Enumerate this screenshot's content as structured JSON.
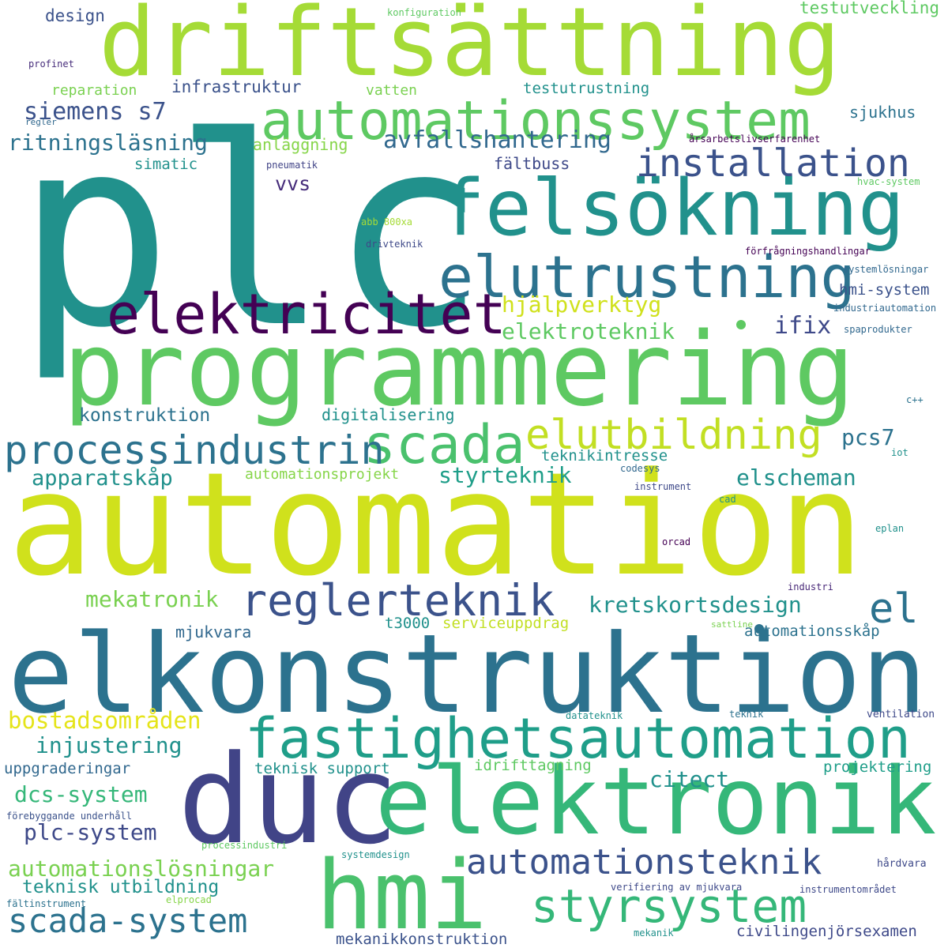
{
  "words": [
    {
      "text": "plc",
      "color": "#21918c"
    },
    {
      "text": "automation",
      "color": "#d0e11c"
    },
    {
      "text": "elkonstruktion",
      "color": "#2c728e"
    },
    {
      "text": "programmering",
      "color": "#5ec962"
    },
    {
      "text": "driftsättning",
      "color": "#a5db36"
    },
    {
      "text": "felsökning",
      "color": "#21918c"
    },
    {
      "text": "duc",
      "color": "#414487"
    },
    {
      "text": "elektronik",
      "color": "#35b779"
    },
    {
      "text": "hmi",
      "color": "#4ac16d"
    },
    {
      "text": "elektricitet",
      "color": "#440154"
    },
    {
      "text": "elutrustning",
      "color": "#2c728e"
    },
    {
      "text": "fastighetsautomation",
      "color": "#1f9e89"
    },
    {
      "text": "automationssystem",
      "color": "#5ec962"
    },
    {
      "text": "scada",
      "color": "#4ac16d"
    },
    {
      "text": "elutbildning",
      "color": "#c2df23"
    },
    {
      "text": "processindustrin",
      "color": "#2c728e"
    },
    {
      "text": "reglerteknik",
      "color": "#3b528b"
    },
    {
      "text": "styrsystem",
      "color": "#35b779"
    },
    {
      "text": "automationsteknik",
      "color": "#3b528b"
    },
    {
      "text": "scada-system",
      "color": "#2c728e"
    },
    {
      "text": "installation",
      "color": "#3b528b"
    },
    {
      "text": "el",
      "color": "#2c728e"
    },
    {
      "text": "avfallshantering",
      "color": "#31688e"
    },
    {
      "text": "siemens s7",
      "color": "#3b528b"
    },
    {
      "text": "ritningsläsning",
      "color": "#2c728e"
    },
    {
      "text": "hjälpverktyg",
      "color": "#d0e11c"
    },
    {
      "text": "elektroteknik",
      "color": "#5ec962"
    },
    {
      "text": "ifix",
      "color": "#3e4989"
    },
    {
      "text": "pcs7",
      "color": "#2c728e"
    },
    {
      "text": "apparatskåp",
      "color": "#21918c"
    },
    {
      "text": "styrteknik",
      "color": "#1f9e89"
    },
    {
      "text": "elscheman",
      "color": "#21918c"
    },
    {
      "text": "kretskortsdesign",
      "color": "#21918c"
    },
    {
      "text": "mekatronik",
      "color": "#7ad151"
    },
    {
      "text": "bostadsområden",
      "color": "#e5e419"
    },
    {
      "text": "injustering",
      "color": "#21918c"
    },
    {
      "text": "dcs-system",
      "color": "#35b779"
    },
    {
      "text": "plc-system",
      "color": "#3e4989"
    },
    {
      "text": "automationslösningar",
      "color": "#7ad151"
    },
    {
      "text": "teknisk utbildning",
      "color": "#21918c"
    },
    {
      "text": "citect",
      "color": "#21918c"
    },
    {
      "text": "vvs",
      "color": "#472d7b"
    },
    {
      "text": "konstruktion",
      "color": "#2c728e"
    },
    {
      "text": "digitalisering",
      "color": "#21918c"
    },
    {
      "text": "mjukvara",
      "color": "#31688e"
    },
    {
      "text": "hmi-system",
      "color": "#3b528b"
    },
    {
      "text": "infrastruktur",
      "color": "#3b528b"
    },
    {
      "text": "design",
      "color": "#3b528b"
    },
    {
      "text": "testutveckling",
      "color": "#5ec962"
    },
    {
      "text": "testutrustning",
      "color": "#21918c"
    },
    {
      "text": "reparation",
      "color": "#7ad151"
    },
    {
      "text": "vatten",
      "color": "#7ad151"
    },
    {
      "text": "sjukhus",
      "color": "#2c728e"
    },
    {
      "text": "anläggning",
      "color": "#86d549"
    },
    {
      "text": "simatic",
      "color": "#21918c"
    },
    {
      "text": "fältbuss",
      "color": "#3e4989"
    },
    {
      "text": "teknikintresse",
      "color": "#21918c"
    },
    {
      "text": "automationsprojekt",
      "color": "#86d549"
    },
    {
      "text": "serviceuppdrag",
      "color": "#c2df23"
    },
    {
      "text": "t3000",
      "color": "#21918c"
    },
    {
      "text": "automationsskåp",
      "color": "#2c728e"
    },
    {
      "text": "uppgraderingar",
      "color": "#31688e"
    },
    {
      "text": "teknisk support",
      "color": "#21918c"
    },
    {
      "text": "idrifttagning",
      "color": "#5ec962"
    },
    {
      "text": "projektering",
      "color": "#1f9e89"
    },
    {
      "text": "civilingenjörsexamen",
      "color": "#3e4989"
    },
    {
      "text": "mekanikkonstruktion",
      "color": "#3b528b"
    },
    {
      "text": "konfiguration",
      "color": "#5ec962"
    },
    {
      "text": "profinet",
      "color": "#472d7b"
    },
    {
      "text": "regler",
      "color": "#31688e"
    },
    {
      "text": "pneumatik",
      "color": "#414487"
    },
    {
      "text": "årsarbetslivserfarenhet",
      "color": "#440154"
    },
    {
      "text": "hvac-system",
      "color": "#5ec962"
    },
    {
      "text": "abb 800xa",
      "color": "#a5db36"
    },
    {
      "text": "drivteknik",
      "color": "#3e4989"
    },
    {
      "text": "förfrågningshandlingar",
      "color": "#440154"
    },
    {
      "text": "systemlösningar",
      "color": "#31688e"
    },
    {
      "text": "industriautomation",
      "color": "#31688e"
    },
    {
      "text": "spaprodukter",
      "color": "#31688e"
    },
    {
      "text": "c++",
      "color": "#2c728e"
    },
    {
      "text": "iot",
      "color": "#21918c"
    },
    {
      "text": "codesys",
      "color": "#31688e"
    },
    {
      "text": "instrument",
      "color": "#3e4989"
    },
    {
      "text": "cad",
      "color": "#21918c"
    },
    {
      "text": "eplan",
      "color": "#21918c"
    },
    {
      "text": "orcad",
      "color": "#440154"
    },
    {
      "text": "industri",
      "color": "#482878"
    },
    {
      "text": "sattline",
      "color": "#7ad151"
    },
    {
      "text": "datateknik",
      "color": "#21918c"
    },
    {
      "text": "teknik",
      "color": "#2c728e"
    },
    {
      "text": "ventilation",
      "color": "#3e4989"
    },
    {
      "text": "förebyggande underhåll",
      "color": "#3b528b"
    },
    {
      "text": "processindustri",
      "color": "#5ec962"
    },
    {
      "text": "systemdesign",
      "color": "#21918c"
    },
    {
      "text": "hårdvara",
      "color": "#3e4989"
    },
    {
      "text": "fältinstrument",
      "color": "#2c728e"
    },
    {
      "text": "elprocad",
      "color": "#86d549"
    },
    {
      "text": "verifiering av mjukvara",
      "color": "#3e4989"
    },
    {
      "text": "instrumentområdet",
      "color": "#3e4989"
    },
    {
      "text": "mekanik",
      "color": "#21918c"
    }
  ]
}
